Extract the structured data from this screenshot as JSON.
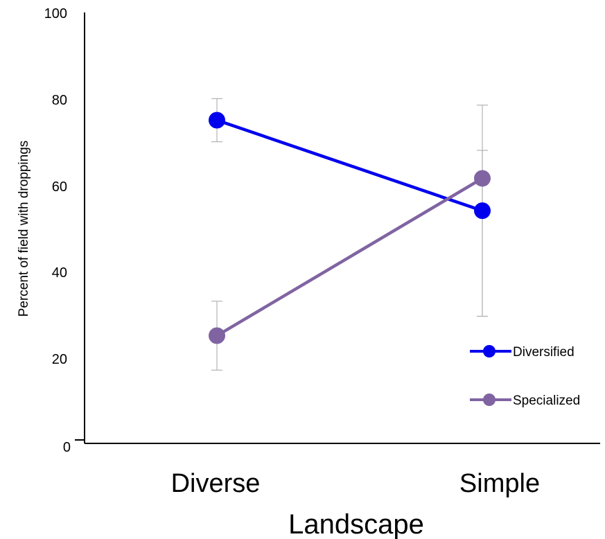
{
  "chart_data": {
    "type": "line",
    "categories": [
      "Diverse",
      "Simple"
    ],
    "xlabel": "Landscape",
    "ylabel": "Percent of field with droppings",
    "ylim": [
      0,
      100
    ],
    "yticks": [
      "0",
      "20",
      "40",
      "60",
      "80",
      "100"
    ],
    "grid": false,
    "legend_position": "bottom-right",
    "series": [
      {
        "name": "Diversified",
        "color": "#0000ee",
        "values": [
          75,
          54
        ],
        "error_low": [
          70,
          29.5
        ],
        "error_high": [
          80,
          68
        ]
      },
      {
        "name": "Specialized",
        "color": "#8064a2",
        "values": [
          25,
          61.5
        ],
        "error_low": [
          17,
          29.5
        ],
        "error_high": [
          33,
          78.5
        ]
      }
    ]
  }
}
